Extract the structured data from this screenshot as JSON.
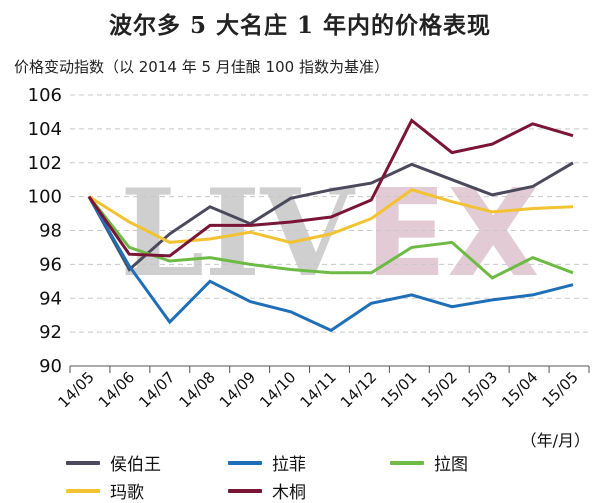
{
  "chart_data": {
    "type": "line",
    "title": "波尔多 5 大名庄 1 年内的价格表现",
    "subtitle": "价格变动指数（以 2014 年 5 月佳酿 100 指数为基准）",
    "xlabel": "（年/月）",
    "ylabel": "价格变动指数",
    "ylim": [
      90,
      106
    ],
    "yticks": [
      90,
      92,
      94,
      96,
      98,
      100,
      102,
      104,
      106
    ],
    "grid": true,
    "legend_position": "bottom",
    "watermark": "LIVEX",
    "categories": [
      "14/05",
      "14/06",
      "14/07",
      "14/08",
      "14/09",
      "14/10",
      "14/11",
      "14/12",
      "15/01",
      "15/02",
      "15/03",
      "15/04",
      "15/05"
    ],
    "series": [
      {
        "name": "侯伯王",
        "color": "#4a4a5c",
        "values": [
          100,
          95.7,
          97.8,
          99.4,
          98.4,
          99.9,
          100.4,
          100.8,
          101.9,
          101.0,
          100.1,
          100.6,
          102.0
        ]
      },
      {
        "name": "拉菲",
        "color": "#1f6fb8",
        "values": [
          100,
          95.9,
          92.6,
          95.0,
          93.8,
          93.2,
          92.1,
          93.7,
          94.2,
          93.5,
          93.9,
          94.2,
          94.8
        ]
      },
      {
        "name": "拉图",
        "color": "#6dbb45",
        "values": [
          100,
          97.0,
          96.2,
          96.4,
          96.0,
          95.7,
          95.5,
          95.5,
          97.0,
          97.3,
          95.2,
          96.4,
          95.5
        ]
      },
      {
        "name": "玛歌",
        "color": "#f3c230",
        "values": [
          100,
          98.5,
          97.3,
          97.5,
          97.9,
          97.3,
          97.8,
          98.7,
          100.4,
          99.7,
          99.1,
          99.3,
          99.4
        ]
      },
      {
        "name": "木桐",
        "color": "#7a1535",
        "values": [
          100,
          96.6,
          96.5,
          98.3,
          98.3,
          98.5,
          98.8,
          99.8,
          104.5,
          102.6,
          103.1,
          104.3,
          103.6
        ]
      }
    ]
  }
}
